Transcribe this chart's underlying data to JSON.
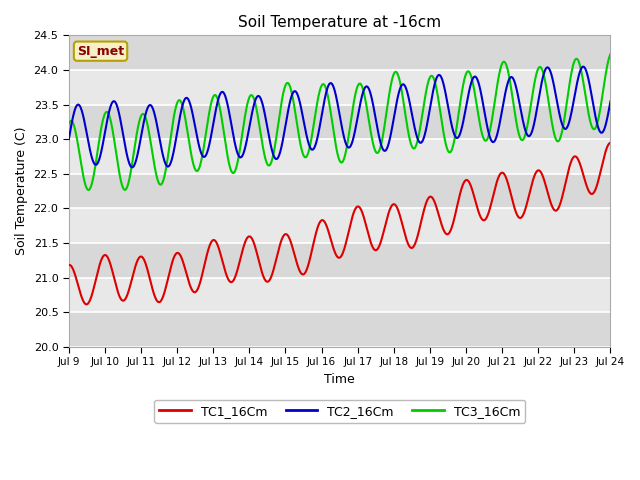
{
  "title": "Soil Temperature at -16cm",
  "xlabel": "Time",
  "ylabel": "Soil Temperature (C)",
  "ylim": [
    20.0,
    24.5
  ],
  "xlim_days": [
    9,
    24
  ],
  "background_color": "#ffffff",
  "plot_bg_color": "#e8e8e8",
  "grid_color": "#ffffff",
  "watermark_text": "SI_met",
  "watermark_bg": "#f5f0c8",
  "watermark_border": "#b8a000",
  "watermark_text_color": "#8b0000",
  "series": {
    "TC1_16Cm": {
      "color": "#dd0000",
      "lw": 1.5
    },
    "TC2_16Cm": {
      "color": "#0000cc",
      "lw": 1.5
    },
    "TC3_16Cm": {
      "color": "#00cc00",
      "lw": 1.5
    }
  },
  "tick_labels": [
    "Jul 9",
    "Jul 10",
    "Jul 11",
    "Jul 12",
    "Jul 13",
    "Jul 14",
    "Jul 15",
    "Jul 16",
    "Jul 17",
    "Jul 18",
    "Jul 19",
    "Jul 20",
    "Jul 21",
    "Jul 22",
    "Jul 23",
    "Jul 24"
  ],
  "tick_positions": [
    9,
    10,
    11,
    12,
    13,
    14,
    15,
    16,
    17,
    18,
    19,
    20,
    21,
    22,
    23,
    24
  ],
  "yticks": [
    20.0,
    20.5,
    21.0,
    21.5,
    22.0,
    22.5,
    23.0,
    23.5,
    24.0,
    24.5
  ]
}
